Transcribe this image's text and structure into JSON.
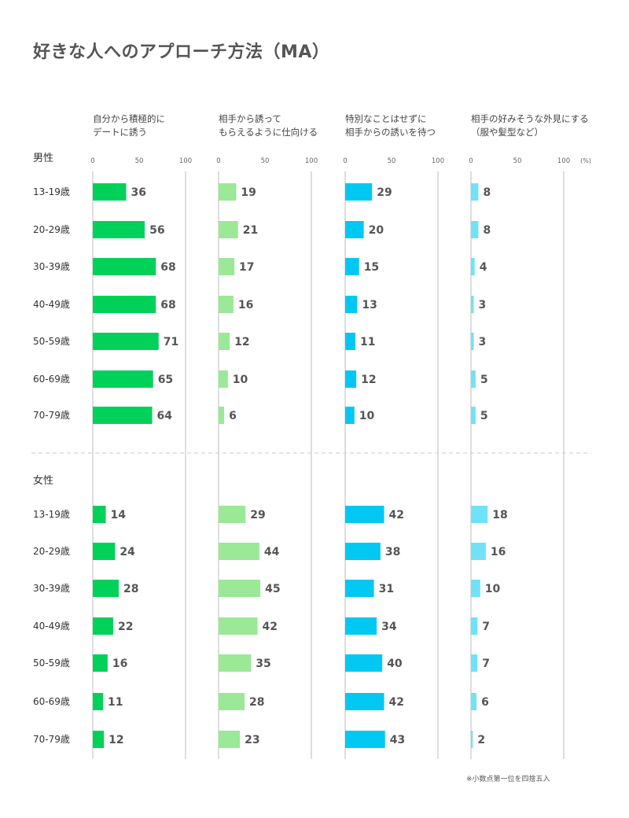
{
  "title": "好きな人へのアプローチ方法（MA）",
  "note": "※小数点第一位を四捨五入",
  "chart_data": {
    "type": "bar",
    "orientation": "horizontal",
    "title": "好きな人へのアプローチ方法（MA）",
    "unit": "(%)",
    "xlim": [
      0,
      100
    ],
    "ticks": [
      "0",
      "50",
      "100"
    ],
    "columns": [
      {
        "line1": "自分から積極的に",
        "line2": "デートに誘う",
        "color": "#00d159"
      },
      {
        "line1": "相手から誘って",
        "line2": "もらえるように仕向ける",
        "color": "#9be897"
      },
      {
        "line1": "特別なことはせずに",
        "line2": "相手からの誘いを待つ",
        "color": "#00c8f2"
      },
      {
        "line1": "相手の好みそうな外見にする",
        "line2": "（服や髪型など）",
        "color": "#70e2f8"
      }
    ],
    "groups": [
      {
        "name": "男性",
        "categories": [
          "13-19歳",
          "20-29歳",
          "30-39歳",
          "40-49歳",
          "50-59歳",
          "60-69歳",
          "70-79歳"
        ],
        "series": [
          {
            "name": "自分から積極的にデートに誘う",
            "values": [
              36,
              56,
              68,
              68,
              71,
              65,
              64
            ]
          },
          {
            "name": "相手から誘ってもらえるように仕向ける",
            "values": [
              19,
              21,
              17,
              16,
              12,
              10,
              6
            ]
          },
          {
            "name": "特別なことはせずに相手からの誘いを待つ",
            "values": [
              29,
              20,
              15,
              13,
              11,
              12,
              10
            ]
          },
          {
            "name": "相手の好みそうな外見にする（服や髪型など）",
            "values": [
              8,
              8,
              4,
              3,
              3,
              5,
              5
            ]
          }
        ]
      },
      {
        "name": "女性",
        "categories": [
          "13-19歳",
          "20-29歳",
          "30-39歳",
          "40-49歳",
          "50-59歳",
          "60-69歳",
          "70-79歳"
        ],
        "series": [
          {
            "name": "自分から積極的にデートに誘う",
            "values": [
              14,
              24,
              28,
              22,
              16,
              11,
              12
            ]
          },
          {
            "name": "相手から誘ってもらえるように仕向ける",
            "values": [
              29,
              44,
              45,
              42,
              35,
              28,
              23
            ]
          },
          {
            "name": "特別なことはせずに相手からの誘いを待つ",
            "values": [
              42,
              38,
              31,
              34,
              40,
              42,
              43
            ]
          },
          {
            "name": "相手の好みそうな外見にする（服や髪型など）",
            "values": [
              18,
              16,
              10,
              7,
              7,
              6,
              2
            ]
          }
        ]
      }
    ]
  }
}
